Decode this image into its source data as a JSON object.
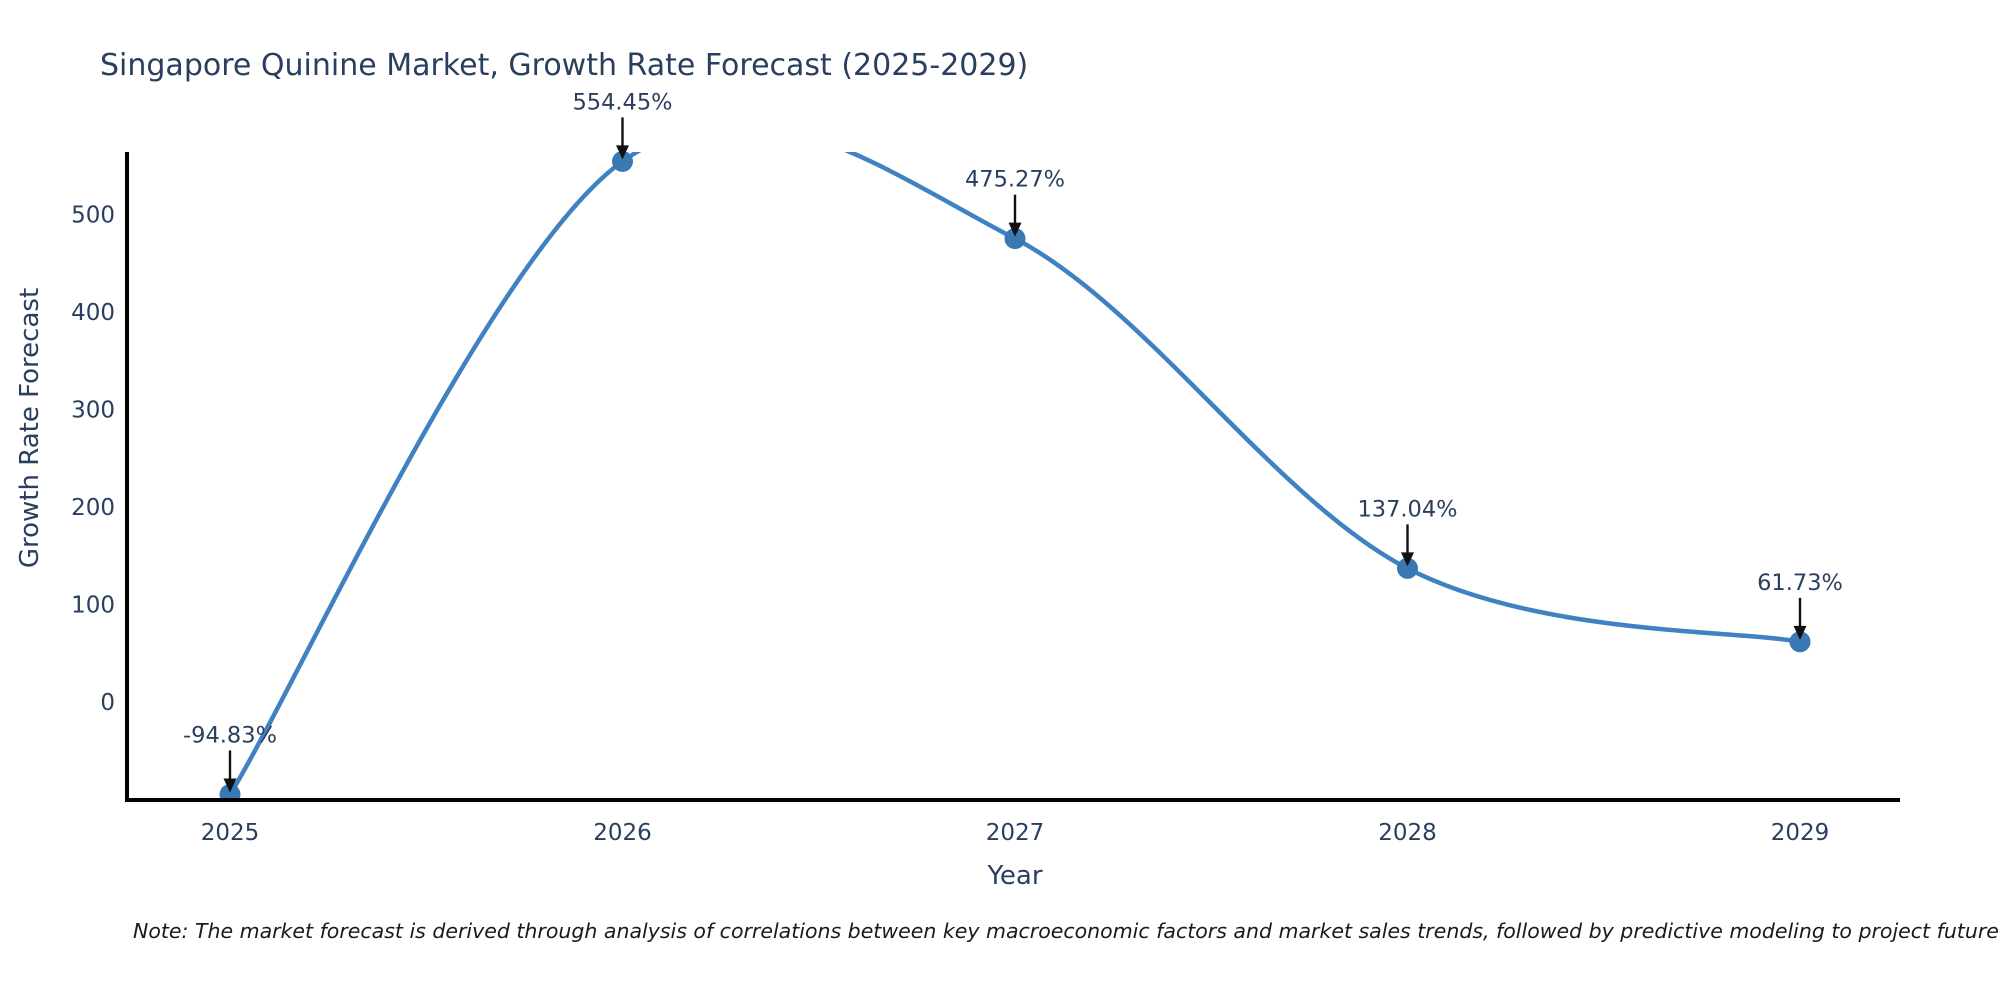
{
  "page": {
    "background": "#ffffff"
  },
  "chart_data": {
    "type": "line",
    "title": "Singapore Quinine Market, Growth Rate Forecast (2025-2029)",
    "xlabel": "Year",
    "ylabel": "Growth Rate Forecast",
    "x": [
      2025,
      2026,
      2027,
      2028,
      2029
    ],
    "series": [
      {
        "name": "Growth Rate Forecast",
        "values": [
          -94.83,
          554.45,
          475.27,
          137.04,
          61.73
        ]
      }
    ],
    "point_labels": [
      "-94.83%",
      "554.45%",
      "475.27%",
      "137.04%",
      "61.73%"
    ],
    "yticks": [
      0,
      100,
      200,
      300,
      400,
      500
    ],
    "xlim": [
      2024.74,
      2029.26
    ],
    "ylim": [
      -100.5,
      564
    ],
    "grid": false,
    "legend": "none",
    "curve": "spline",
    "markers": true,
    "line_color": "#3f81c1",
    "marker_color": "#3a78b4",
    "spine_color": "#000000",
    "arrow_color": "#111111",
    "annotation_color": "#2a3f5f",
    "axis_text_color": "#2a3f5f"
  },
  "footnote": {
    "text": "Note: The market forecast is derived through analysis of correlations between key macroeconomic factors and market sales trends, followed by predictive modeling to project future sales"
  }
}
